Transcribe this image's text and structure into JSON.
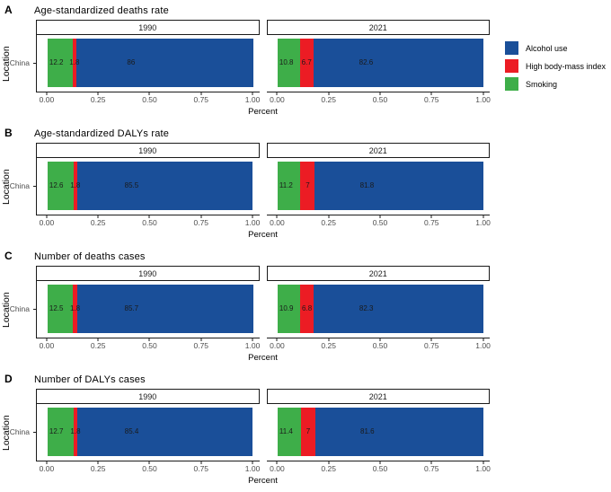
{
  "colors": {
    "alcohol": "#1A4F99",
    "bmi": "#EC1C24",
    "smoking": "#3EAE49"
  },
  "axes": {
    "xlabel": "Percent",
    "ylabel": "Location",
    "ytick": "China",
    "xticks": [
      "0.00",
      "0.25",
      "0.50",
      "0.75",
      "1.00"
    ]
  },
  "legend": {
    "items": [
      {
        "label": "Alcohol use",
        "color": "#1A4F99"
      },
      {
        "label": "High body-mass index",
        "color": "#EC1C24"
      },
      {
        "label": "Smoking",
        "color": "#3EAE49"
      }
    ]
  },
  "panels": [
    {
      "letter": "A",
      "title": "Age-standardized deaths rate",
      "facets": [
        {
          "strip": "1990",
          "values": [
            12.2,
            1.8,
            86.0
          ],
          "labels": [
            "12.2",
            "1.8",
            "86"
          ]
        },
        {
          "strip": "2021",
          "values": [
            10.8,
            6.7,
            82.6
          ],
          "labels": [
            "10.8",
            "6.7",
            "82.6"
          ]
        }
      ]
    },
    {
      "letter": "B",
      "title": "Age-standardized DALYs rate",
      "facets": [
        {
          "strip": "1990",
          "values": [
            12.6,
            1.8,
            85.5
          ],
          "labels": [
            "12.6",
            "1.8",
            "85.5"
          ]
        },
        {
          "strip": "2021",
          "values": [
            11.2,
            7.0,
            81.8
          ],
          "labels": [
            "11.2",
            "7",
            "81.8"
          ]
        }
      ]
    },
    {
      "letter": "C",
      "title": "Number of deaths cases",
      "facets": [
        {
          "strip": "1990",
          "values": [
            12.5,
            1.8,
            85.7
          ],
          "labels": [
            "12.5",
            "1.8",
            "85.7"
          ]
        },
        {
          "strip": "2021",
          "values": [
            10.9,
            6.8,
            82.3
          ],
          "labels": [
            "10.9",
            "6.8",
            "82.3"
          ]
        }
      ]
    },
    {
      "letter": "D",
      "title": "Number of DALYs cases",
      "facets": [
        {
          "strip": "1990",
          "values": [
            12.7,
            1.8,
            85.4
          ],
          "labels": [
            "12.7",
            "1.8",
            "85.4"
          ]
        },
        {
          "strip": "2021",
          "values": [
            11.4,
            7.0,
            81.6
          ],
          "labels": [
            "11.4",
            "7",
            "81.6"
          ]
        }
      ]
    }
  ],
  "chart_data": [
    {
      "type": "bar",
      "orientation": "horizontal",
      "stacked": true,
      "panel": "A",
      "title": "Age-standardized deaths rate",
      "categories": [
        "China"
      ],
      "facets": [
        "1990",
        "2021"
      ],
      "series": [
        {
          "name": "Smoking",
          "values": {
            "1990": 12.2,
            "2021": 10.8
          }
        },
        {
          "name": "High body-mass index",
          "values": {
            "1990": 1.8,
            "2021": 6.7
          }
        },
        {
          "name": "Alcohol use",
          "values": {
            "1990": 86.0,
            "2021": 82.6
          }
        }
      ],
      "values_unit": "percent of total",
      "xlabel": "Percent",
      "ylabel": "Location",
      "xlim": [
        0,
        1
      ],
      "xticks": [
        0,
        0.25,
        0.5,
        0.75,
        1
      ],
      "grid": false,
      "legend_position": "right"
    },
    {
      "type": "bar",
      "orientation": "horizontal",
      "stacked": true,
      "panel": "B",
      "title": "Age-standardized DALYs rate",
      "categories": [
        "China"
      ],
      "facets": [
        "1990",
        "2021"
      ],
      "series": [
        {
          "name": "Smoking",
          "values": {
            "1990": 12.6,
            "2021": 11.2
          }
        },
        {
          "name": "High body-mass index",
          "values": {
            "1990": 1.8,
            "2021": 7.0
          }
        },
        {
          "name": "Alcohol use",
          "values": {
            "1990": 85.5,
            "2021": 81.8
          }
        }
      ],
      "values_unit": "percent of total",
      "xlabel": "Percent",
      "ylabel": "Location",
      "xlim": [
        0,
        1
      ],
      "xticks": [
        0,
        0.25,
        0.5,
        0.75,
        1
      ],
      "grid": false,
      "legend_position": "none"
    },
    {
      "type": "bar",
      "orientation": "horizontal",
      "stacked": true,
      "panel": "C",
      "title": "Number of deaths cases",
      "categories": [
        "China"
      ],
      "facets": [
        "1990",
        "2021"
      ],
      "series": [
        {
          "name": "Smoking",
          "values": {
            "1990": 12.5,
            "2021": 10.9
          }
        },
        {
          "name": "High body-mass index",
          "values": {
            "1990": 1.8,
            "2021": 6.8
          }
        },
        {
          "name": "Alcohol use",
          "values": {
            "1990": 85.7,
            "2021": 82.3
          }
        }
      ],
      "values_unit": "percent of total",
      "xlabel": "Percent",
      "ylabel": "Location",
      "xlim": [
        0,
        1
      ],
      "xticks": [
        0,
        0.25,
        0.5,
        0.75,
        1
      ],
      "grid": false,
      "legend_position": "none"
    },
    {
      "type": "bar",
      "orientation": "horizontal",
      "stacked": true,
      "panel": "D",
      "title": "Number of DALYs cases",
      "categories": [
        "China"
      ],
      "facets": [
        "1990",
        "2021"
      ],
      "series": [
        {
          "name": "Smoking",
          "values": {
            "1990": 12.7,
            "2021": 11.4
          }
        },
        {
          "name": "High body-mass index",
          "values": {
            "1990": 1.8,
            "2021": 7.0
          }
        },
        {
          "name": "Alcohol use",
          "values": {
            "1990": 85.4,
            "2021": 81.6
          }
        }
      ],
      "values_unit": "percent of total",
      "xlabel": "Percent",
      "ylabel": "Location",
      "xlim": [
        0,
        1
      ],
      "xticks": [
        0,
        0.25,
        0.5,
        0.75,
        1
      ],
      "grid": false,
      "legend_position": "none"
    }
  ]
}
